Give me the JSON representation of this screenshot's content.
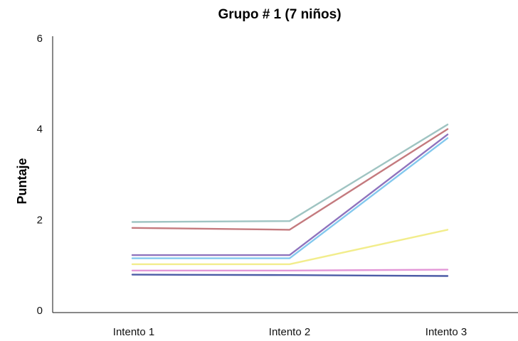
{
  "chart_data": {
    "type": "line",
    "title": "Grupo # 1 (7 niños)",
    "xlabel": "",
    "ylabel": "Puntaje",
    "categories": [
      "Intento 1",
      "Intento 2",
      "Intento 3"
    ],
    "y_ticks": [
      "0",
      "2",
      "4",
      "6"
    ],
    "ylim": [
      0,
      6
    ],
    "grid": false,
    "legend": "none",
    "series": [
      {
        "values": [
          1.95,
          1.97,
          4.1
        ],
        "color": "#9fc4c2"
      },
      {
        "values": [
          1.82,
          1.78,
          4.0
        ],
        "color": "#c47a7e"
      },
      {
        "values": [
          1.22,
          1.22,
          3.88
        ],
        "color": "#8f73bd"
      },
      {
        "values": [
          1.15,
          1.15,
          3.8
        ],
        "color": "#83c8ee"
      },
      {
        "values": [
          1.02,
          1.02,
          1.78
        ],
        "color": "#f2ed8c"
      },
      {
        "values": [
          0.88,
          0.88,
          0.9
        ],
        "color": "#e397d7"
      },
      {
        "values": [
          0.79,
          0.78,
          0.76
        ],
        "color": "#4c5ca6"
      }
    ]
  }
}
